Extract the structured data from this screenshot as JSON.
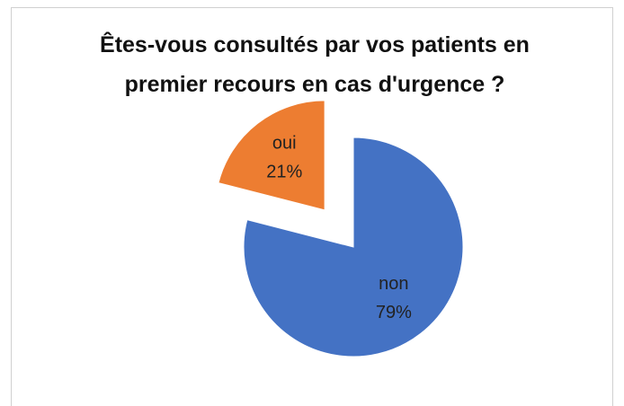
{
  "chart_data": {
    "type": "pie",
    "title": "Êtes-vous consultés par vos patients en premier recours en cas d'urgence ?",
    "categories": [
      "non",
      "oui"
    ],
    "values": [
      79,
      21
    ],
    "value_labels": [
      "79%",
      "21%"
    ],
    "colors": [
      "#4472c4",
      "#ed7d31"
    ]
  }
}
